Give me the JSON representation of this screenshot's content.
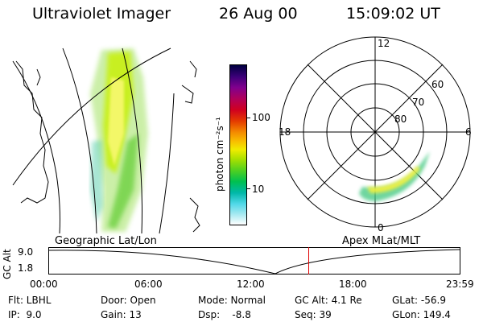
{
  "header": {
    "instrument": "Ultraviolet Imager",
    "date": "26 Aug 00",
    "time": "15:09:02 UT"
  },
  "colorbar": {
    "unit_label": "photon cm⁻²s⁻¹",
    "ticks": [
      "100",
      "10"
    ],
    "colors": [
      "#000040",
      "#3a0078",
      "#80008e",
      "#b0005a",
      "#d00020",
      "#e43a00",
      "#f48a00",
      "#f8c000",
      "#f0ec00",
      "#a8e000",
      "#50d020",
      "#00c050",
      "#00b8a8",
      "#50d8e8",
      "#a0e8f0",
      "#ffffff"
    ]
  },
  "polar_plot": {
    "mlt_labels": [
      "12",
      "18",
      "6",
      "0"
    ],
    "lat_labels": [
      "60",
      "70",
      "80"
    ]
  },
  "panel_labels": {
    "left": "Geographic Lat/Lon",
    "right": "Apex MLat/MLT"
  },
  "altitude_strip": {
    "axis_label": "GC Alt",
    "y_ticks": [
      "9.0",
      "1.8"
    ],
    "x_ticks": [
      "00:00",
      "06:00",
      "12:00",
      "18:00",
      "23:59"
    ],
    "current_time_fraction": 0.63
  },
  "status": {
    "row1": {
      "flt": "Flt: LBHL",
      "door": "Door: Open",
      "mode": "Mode: Normal",
      "gcalt": "GC Alt: 4.1 Re",
      "glat": "GLat: -56.9"
    },
    "row2": {
      "ip": "IP:  9.0",
      "gain": "Gain: 13",
      "dsp": "Dsp:    -8.8",
      "seq": "Seq: 39",
      "glon": "GLon: 149.4"
    }
  }
}
